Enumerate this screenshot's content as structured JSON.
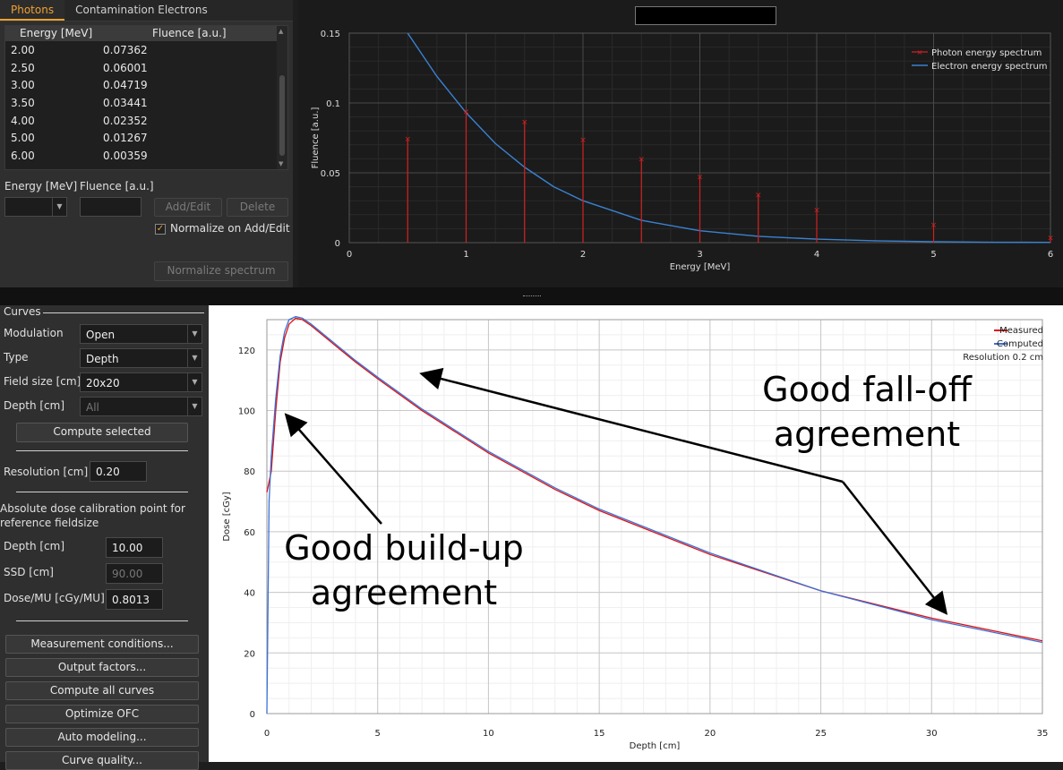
{
  "tabs": [
    "Photons",
    "Contamination Electrons"
  ],
  "spectrum_table": {
    "headers": [
      "Energy [MeV]",
      "Fluence [a.u.]"
    ],
    "rows": [
      [
        "2.00",
        "0.07362"
      ],
      [
        "2.50",
        "0.06001"
      ],
      [
        "3.00",
        "0.04719"
      ],
      [
        "3.50",
        "0.03441"
      ],
      [
        "4.00",
        "0.02352"
      ],
      [
        "5.00",
        "0.01267"
      ],
      [
        "6.00",
        "0.00359"
      ]
    ]
  },
  "spectrum_edit": {
    "energy_label": "Energy [MeV]",
    "fluence_label": "Fluence [a.u.]",
    "add_edit": "Add/Edit",
    "delete": "Delete",
    "normalize_on_add": "Normalize on Add/Edit",
    "normalize_on_add_checked": true,
    "normalize_spectrum": "Normalize spectrum"
  },
  "curves_panel": {
    "section": "Curves",
    "modulation_label": "Modulation",
    "modulation_value": "Open",
    "type_label": "Type",
    "type_value": "Depth",
    "field_size_label": "Field size [cm]",
    "field_size_value": "20x20",
    "depth_label": "Depth [cm]",
    "depth_value": "All",
    "compute_selected": "Compute selected",
    "resolution_label": "Resolution [cm]",
    "resolution_value": "0.20",
    "calib_title_1": "Absolute dose calibration point for",
    "calib_title_2": "reference fieldsize",
    "calib_depth_label": "Depth [cm]",
    "calib_depth_value": "10.00",
    "ssd_label": "SSD [cm]",
    "ssd_value": "90.00",
    "dose_mu_label": "Dose/MU [cGy/MU]",
    "dose_mu_value": "0.8013",
    "buttons": [
      "Measurement conditions...",
      "Output factors...",
      "Compute all curves",
      "Optimize OFC",
      "Auto modeling...",
      "Curve quality..."
    ]
  },
  "chart_data": [
    {
      "type": "line",
      "title": "",
      "xlabel": "Energy [MeV]",
      "ylabel": "Fluence [a.u.]",
      "xlim": [
        0,
        6
      ],
      "ylim": [
        0,
        0.15
      ],
      "xticks": [
        "0",
        "1",
        "2",
        "3",
        "4",
        "5",
        "6"
      ],
      "yticks": [
        "0",
        "0.05",
        "0.1",
        "0.15"
      ],
      "legend": "top-right",
      "series": [
        {
          "name": "Photon energy spectrum",
          "style": "stem",
          "color": "#d42020",
          "x": [
            0.5,
            1.0,
            1.5,
            2.0,
            2.5,
            3.0,
            3.5,
            4.0,
            5.0,
            6.0
          ],
          "y": [
            0.0745,
            0.094,
            0.0865,
            0.0736,
            0.06,
            0.0472,
            0.0344,
            0.0235,
            0.0127,
            0.0036
          ]
        },
        {
          "name": "Electron energy spectrum",
          "style": "line",
          "color": "#3a82d0",
          "x": [
            0.5,
            0.75,
            1.0,
            1.25,
            1.5,
            1.75,
            2.0,
            2.5,
            3.0,
            3.5,
            4.0,
            4.5,
            5.0,
            5.5,
            6.0
          ],
          "y": [
            0.15,
            0.119,
            0.093,
            0.071,
            0.054,
            0.04,
            0.03,
            0.016,
            0.0085,
            0.0045,
            0.0025,
            0.0013,
            0.0007,
            0.0003,
            0.0002
          ]
        }
      ]
    },
    {
      "type": "line",
      "title": "",
      "xlabel": "Depth [cm]",
      "ylabel": "Dose [cGy]",
      "xlim": [
        0,
        35
      ],
      "ylim": [
        0,
        130
      ],
      "xticks": [
        "0",
        "5",
        "10",
        "15",
        "20",
        "25",
        "30",
        "35"
      ],
      "yticks": [
        "0",
        "20",
        "40",
        "60",
        "80",
        "100",
        "120"
      ],
      "legend": "top-right",
      "legend_note": "Resolution 0.2 cm",
      "series": [
        {
          "name": "Measured",
          "color": "#e01010",
          "x": [
            0,
            0.2,
            0.4,
            0.6,
            0.8,
            1.0,
            1.3,
            1.6,
            2,
            3,
            4,
            5,
            7,
            10,
            13,
            15,
            20,
            25,
            30,
            35
          ],
          "y": [
            73,
            80,
            100,
            116,
            124,
            128.5,
            130.5,
            130,
            128,
            122,
            116,
            110.5,
            100,
            86,
            74,
            67,
            52.5,
            40.5,
            31.5,
            24
          ]
        },
        {
          "name": "Computed",
          "color": "#3a70d8",
          "x": [
            0,
            0.1,
            0.2,
            0.4,
            0.6,
            0.8,
            1.0,
            1.3,
            1.6,
            2,
            3,
            4,
            5,
            7,
            10,
            13,
            15,
            20,
            25,
            30,
            35
          ],
          "y": [
            0,
            70,
            85,
            104,
            118,
            126,
            130,
            131,
            130.5,
            128.5,
            122.5,
            116.5,
            111,
            100.5,
            86.5,
            74.5,
            67.5,
            53,
            40.5,
            31,
            23.5
          ]
        }
      ],
      "annotations": [
        {
          "text_lines": [
            "Good fall-off",
            "agreement"
          ]
        },
        {
          "text_lines": [
            "Good build-up",
            "agreement"
          ]
        }
      ]
    }
  ]
}
